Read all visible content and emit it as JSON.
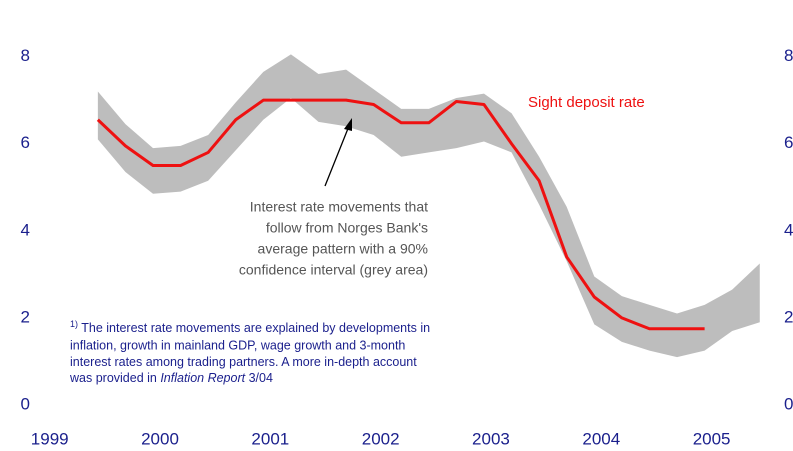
{
  "chart_data": {
    "type": "line",
    "xlim": [
      1999,
      2005.62
    ],
    "ylim": [
      0,
      9.3
    ],
    "y2lim": [
      0,
      9.3
    ],
    "xticks": [
      1999,
      2000,
      2001,
      2002,
      2003,
      2004,
      2005
    ],
    "yticks": [
      0,
      2,
      4,
      6,
      8
    ],
    "y2ticks": [
      0,
      2,
      4,
      6,
      8
    ],
    "band": {
      "color": "#bdbdbd",
      "x": [
        1999.5,
        1999.75,
        2000,
        2000.25,
        2000.5,
        2000.75,
        2001,
        2001.25,
        2001.5,
        2001.75,
        2002,
        2002.25,
        2002.5,
        2002.75,
        2003,
        2003.25,
        2003.5,
        2003.75,
        2004,
        2004.25,
        2004.5,
        2004.75,
        2005,
        2005.25,
        2005.5
      ],
      "upper": [
        7.2,
        6.45,
        5.9,
        5.95,
        6.2,
        6.95,
        7.65,
        8.05,
        7.6,
        7.7,
        7.25,
        6.8,
        6.8,
        7.05,
        7.15,
        6.7,
        5.7,
        4.55,
        2.95,
        2.5,
        2.3,
        2.1,
        2.3,
        2.65,
        3.25
      ],
      "lower": [
        6.1,
        5.35,
        4.85,
        4.9,
        5.15,
        5.85,
        6.55,
        7.05,
        6.5,
        6.4,
        6.2,
        5.7,
        5.8,
        5.9,
        6.05,
        5.8,
        4.6,
        3.3,
        1.85,
        1.45,
        1.25,
        1.1,
        1.25,
        1.7,
        1.9
      ]
    },
    "series": [
      {
        "name": "Sight deposit rate",
        "color": "#ee1111",
        "x": [
          1999.5,
          1999.75,
          2000,
          2000.25,
          2000.5,
          2000.75,
          2001,
          2001.25,
          2001.5,
          2001.75,
          2002,
          2002.25,
          2002.5,
          2002.75,
          2003,
          2003.25,
          2003.5,
          2003.75,
          2004,
          2004.25,
          2004.5,
          2004.75,
          2005
        ],
        "values": [
          6.55,
          5.95,
          5.5,
          5.5,
          5.8,
          6.55,
          7.0,
          7.0,
          7.0,
          7.0,
          6.9,
          6.48,
          6.48,
          6.97,
          6.9,
          6.0,
          5.15,
          3.4,
          2.48,
          2.0,
          1.75,
          1.75,
          1.75
        ]
      }
    ],
    "annotation": [
      "Interest rate movements that",
      "follow from Norges Bank's",
      "average pattern with a 90%",
      "confidence interval (grey area)"
    ],
    "footnote": {
      "marker": "1)",
      "lines": [
        " The interest rate movements are explained by developments in",
        "inflation, growth in mainland GDP, wage growth and 3-month",
        "interest rates among trading partners. A more in-depth account"
      ],
      "last": [
        "was provided in ",
        "Inflation Report",
        " 3/04"
      ]
    }
  }
}
